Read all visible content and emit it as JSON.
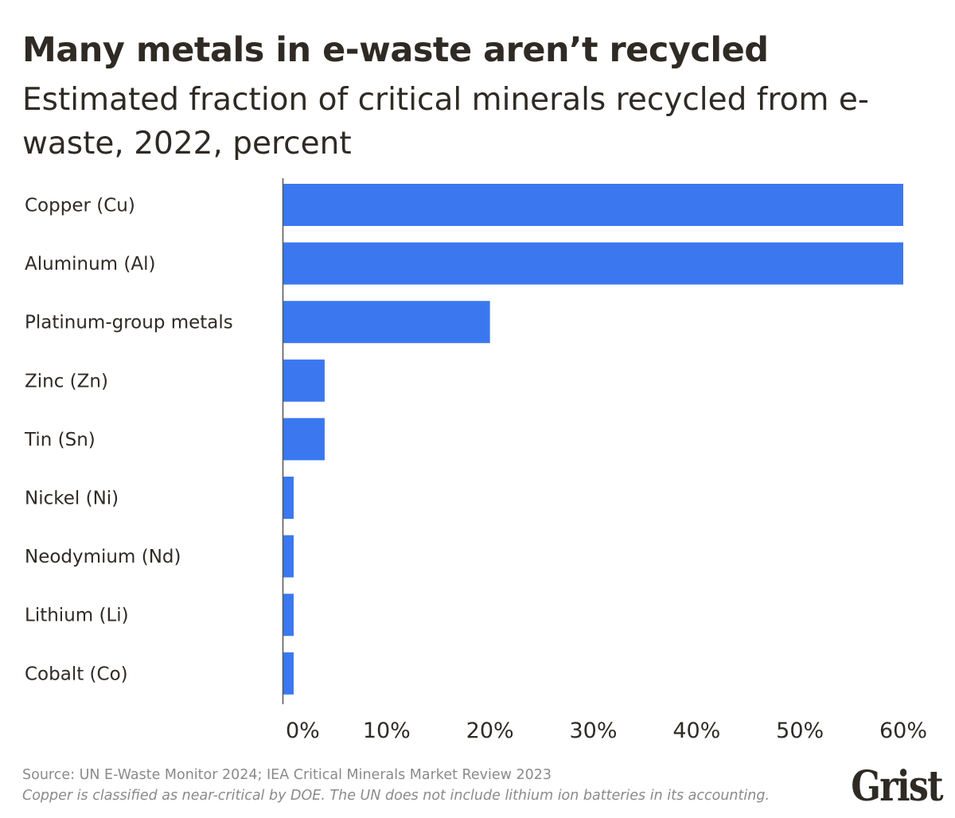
{
  "chart_data": {
    "type": "bar",
    "orientation": "horizontal",
    "title": "Many metals in e-waste aren’t recycled",
    "subtitle": "Estimated fraction of critical minerals recycled from e-waste, 2022, percent",
    "categories": [
      "Copper (Cu)",
      "Aluminum (Al)",
      "Platinum-group metals",
      "Zinc (Zn)",
      "Tin (Sn)",
      "Nickel (Ni)",
      "Neodymium (Nd)",
      "Lithium (Li)",
      "Cobalt (Co)"
    ],
    "values": [
      60,
      60,
      20,
      4,
      4,
      1,
      1,
      1,
      1
    ],
    "xlim": [
      0,
      60
    ],
    "xticks": [
      0,
      10,
      20,
      30,
      40,
      50,
      60
    ],
    "xtick_labels": [
      "0%",
      "10%",
      "20%",
      "30%",
      "40%",
      "50%",
      "60%"
    ],
    "xlabel": "",
    "ylabel": "",
    "grid": false,
    "bar_color": "#3b78f0"
  },
  "footer": {
    "source": "Source: UN E-Waste Monitor 2024; IEA Critical Minerals Market Review 2023",
    "note": "Copper is classified as near-critical by DOE. The UN does not include lithium ion batteries in its accounting.",
    "logo": "Grist"
  }
}
